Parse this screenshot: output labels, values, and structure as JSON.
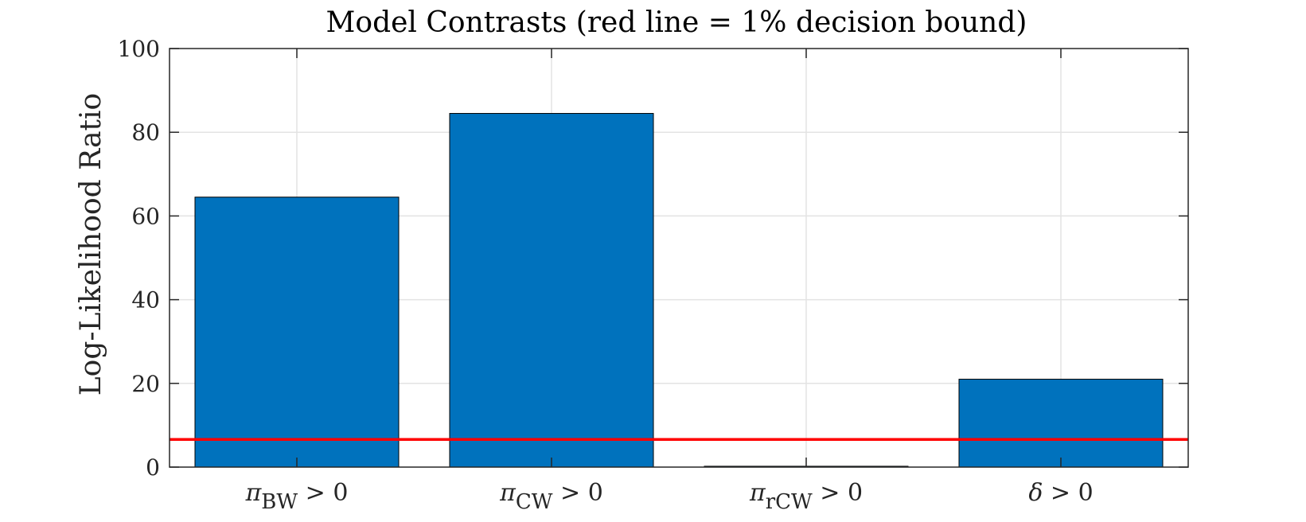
{
  "chart_data": {
    "type": "bar",
    "title": "Model Contrasts (red line = 1% decision bound)",
    "xlabel": "",
    "ylabel": "Log-Likelihood Ratio",
    "categories": [
      {
        "symbol": "π",
        "subscript": "BW",
        "rest": " > 0"
      },
      {
        "symbol": "π",
        "subscript": "CW",
        "rest": " > 0"
      },
      {
        "symbol": "π",
        "subscript": "rCW",
        "rest": " > 0"
      },
      {
        "symbol": "δ",
        "subscript": "",
        "rest": " > 0"
      }
    ],
    "values": [
      64.5,
      84.5,
      0.2,
      21.0
    ],
    "ylim": [
      0,
      100
    ],
    "yticks": [
      "0",
      "20",
      "40",
      "60",
      "80",
      "100"
    ],
    "threshold": 6.6,
    "grid": true,
    "bar_color": "#0072BD",
    "threshold_color": "#FF0000"
  }
}
